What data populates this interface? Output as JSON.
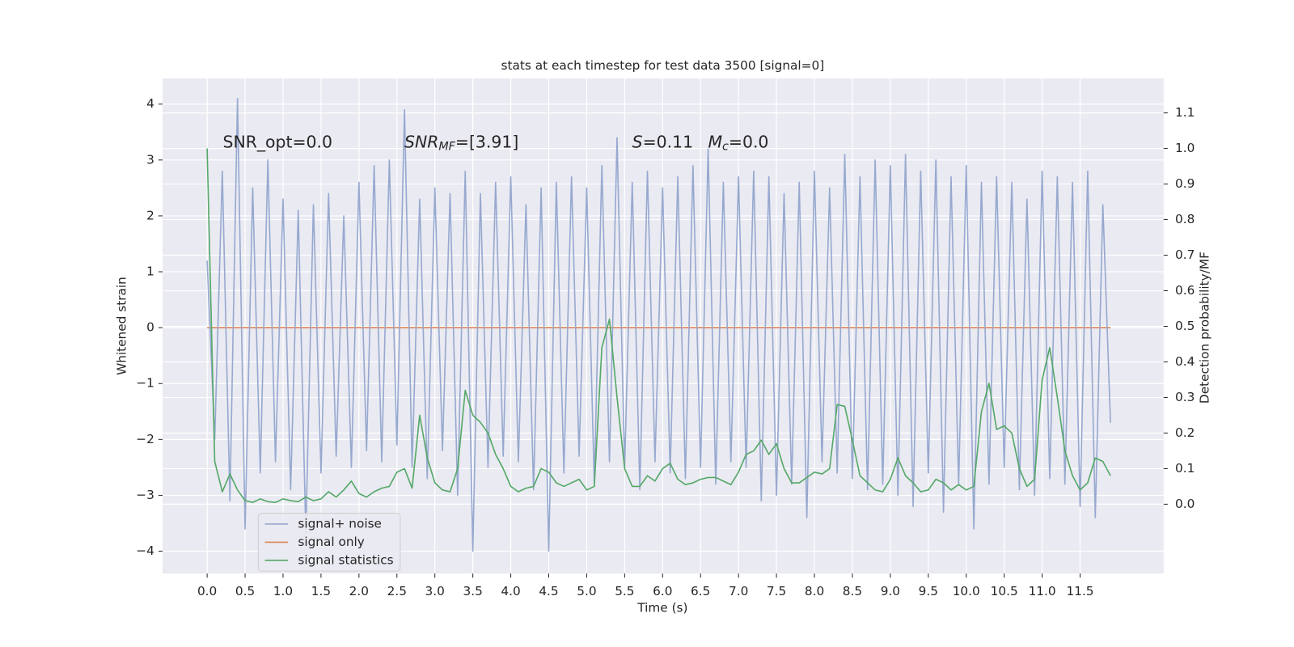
{
  "chart_data": {
    "type": "line",
    "title": "stats at each timestep for test data 3500 [signal=0]",
    "x_label": "Time (s)",
    "y_label": "Whitened strain",
    "y2_label": "Detection probability/MF",
    "annotations": [
      {
        "text": "SNR_opt=0.0"
      },
      {
        "symbol": "SNR",
        "sub": "MF",
        "text": "=[3.91]"
      },
      {
        "symbol": "S",
        "text": "=0.11",
        "symbol2": "M",
        "sub2": "c",
        "text2": "=0.0"
      }
    ],
    "grid": true,
    "legend": "lower left",
    "xlim": [
      -0.587,
      12.6
    ],
    "ylim": [
      -4.4,
      4.46
    ],
    "y2lim": [
      -0.195,
      1.197
    ],
    "xticks": [
      {
        "value": 0,
        "label": "0.0"
      },
      {
        "value": 0.5,
        "label": "0.5"
      },
      {
        "value": 1,
        "label": "1.0"
      },
      {
        "value": 1.5,
        "label": "1.5"
      },
      {
        "value": 2,
        "label": "2.0"
      },
      {
        "value": 2.5,
        "label": "2.5"
      },
      {
        "value": 3,
        "label": "3.0"
      },
      {
        "value": 3.5,
        "label": "3.5"
      },
      {
        "value": 4,
        "label": "4.0"
      },
      {
        "value": 4.5,
        "label": "4.5"
      },
      {
        "value": 5,
        "label": "5.0"
      },
      {
        "value": 5.5,
        "label": "5.5"
      },
      {
        "value": 6,
        "label": "6.0"
      },
      {
        "value": 6.5,
        "label": "6.5"
      },
      {
        "value": 7,
        "label": "7.0"
      },
      {
        "value": 7.5,
        "label": "7.5"
      },
      {
        "value": 8,
        "label": "8.0"
      },
      {
        "value": 8.5,
        "label": "8.5"
      },
      {
        "value": 9,
        "label": "9.0"
      },
      {
        "value": 9.5,
        "label": "9.5"
      },
      {
        "value": 10,
        "label": "10.0"
      },
      {
        "value": 10.5,
        "label": "10.5"
      },
      {
        "value": 11,
        "label": "11.0"
      },
      {
        "value": 11.5,
        "label": "11.5"
      }
    ],
    "yticks": [
      {
        "value": -4,
        "label": "−4"
      },
      {
        "value": -3,
        "label": "−3"
      },
      {
        "value": -2,
        "label": "−2"
      },
      {
        "value": -1,
        "label": "−1"
      },
      0,
      1,
      2,
      3,
      4
    ],
    "y2ticks": [
      {
        "value": 0,
        "label": "0.0"
      },
      {
        "value": 0.1,
        "label": "0.1"
      },
      {
        "value": 0.2,
        "label": "0.2"
      },
      {
        "value": 0.3,
        "label": "0.3"
      },
      {
        "value": 0.4,
        "label": "0.4"
      },
      {
        "value": 0.5,
        "label": "0.5"
      },
      {
        "value": 0.6,
        "label": "0.6"
      },
      {
        "value": 0.7,
        "label": "0.7"
      },
      {
        "value": 0.8,
        "label": "0.8"
      },
      {
        "value": 0.9,
        "label": "0.9"
      },
      {
        "value": 1,
        "label": "1.0"
      },
      {
        "value": 1.1,
        "label": "1.1"
      }
    ],
    "x": [
      0,
      0.1,
      0.2,
      0.3,
      0.4,
      0.5,
      0.6,
      0.7,
      0.8,
      0.9,
      1,
      1.1,
      1.2,
      1.3,
      1.4,
      1.5,
      1.6,
      1.7,
      1.8,
      1.9,
      2,
      2.1,
      2.2,
      2.3,
      2.4,
      2.5,
      2.6,
      2.7,
      2.8,
      2.9,
      3,
      3.1,
      3.2,
      3.3,
      3.4,
      3.5,
      3.6,
      3.7,
      3.8,
      3.9,
      4,
      4.1,
      4.2,
      4.3,
      4.4,
      4.5,
      4.6,
      4.7,
      4.8,
      4.9,
      5,
      5.1,
      5.2,
      5.3,
      5.4,
      5.5,
      5.6,
      5.7,
      5.8,
      5.9,
      6,
      6.1,
      6.2,
      6.3,
      6.4,
      6.5,
      6.6,
      6.7,
      6.8,
      6.9,
      7,
      7.1,
      7.2,
      7.3,
      7.4,
      7.5,
      7.6,
      7.7,
      7.8,
      7.9,
      8,
      8.1,
      8.2,
      8.3,
      8.4,
      8.5,
      8.6,
      8.7,
      8.8,
      8.9,
      9,
      9.1,
      9.2,
      9.3,
      9.4,
      9.5,
      9.6,
      9.7,
      9.8,
      9.9,
      10,
      10.1,
      10.2,
      10.3,
      10.4,
      10.5,
      10.6,
      10.7,
      10.8,
      10.9,
      11,
      11.1,
      11.2,
      11.3,
      11.4,
      11.5,
      11.6,
      11.7,
      11.8,
      11.9
    ],
    "series": [
      {
        "name": "signal only",
        "color": "#dd8452",
        "values": [
          0,
          0,
          0,
          0,
          0,
          0,
          0,
          0,
          0,
          0,
          0,
          0,
          0,
          0,
          0,
          0,
          0,
          0,
          0,
          0,
          0,
          0,
          0,
          0,
          0,
          0,
          0,
          0,
          0,
          0,
          0,
          0,
          0,
          0,
          0,
          0,
          0,
          0,
          0,
          0,
          0,
          0,
          0,
          0,
          0,
          0,
          0,
          0,
          0,
          0,
          0,
          0,
          0,
          0,
          0,
          0,
          0,
          0,
          0,
          0,
          0,
          0,
          0,
          0,
          0,
          0,
          0,
          0,
          0,
          0,
          0,
          0,
          0,
          0,
          0,
          0,
          0,
          0,
          0,
          0,
          0,
          0,
          0,
          0,
          0,
          0,
          0,
          0,
          0,
          0,
          0,
          0,
          0,
          0,
          0,
          0,
          0,
          0,
          0,
          0,
          0,
          0,
          0,
          0,
          0,
          0,
          0,
          0,
          0,
          0,
          0,
          0,
          0,
          0,
          0,
          0,
          0,
          0,
          0,
          0
        ]
      },
      {
        "name": "signal+ noise",
        "color": "#97a9cf",
        "values": [
          1.2,
          -2.0,
          2.8,
          -3.1,
          4.1,
          -3.6,
          2.5,
          -2.6,
          3.0,
          -2.4,
          2.3,
          -2.9,
          2.1,
          -3.7,
          2.2,
          -2.6,
          2.4,
          -2.3,
          2.0,
          -2.5,
          2.6,
          -2.2,
          2.9,
          -2.4,
          3.0,
          -2.1,
          3.9,
          -2.5,
          2.3,
          -2.7,
          2.5,
          -2.2,
          2.4,
          -3.0,
          2.8,
          -4.0,
          2.4,
          -2.5,
          2.6,
          -2.3,
          2.7,
          -2.4,
          2.2,
          -2.9,
          2.5,
          -4.0,
          2.6,
          -2.6,
          2.7,
          -2.3,
          2.5,
          -2.8,
          2.9,
          -2.4,
          3.4,
          -2.5,
          2.6,
          -2.9,
          2.8,
          -2.4,
          2.5,
          -2.6,
          2.7,
          -2.7,
          2.9,
          -2.5,
          3.2,
          -2.8,
          2.6,
          -2.4,
          2.7,
          -2.5,
          2.8,
          -3.1,
          2.7,
          -3.0,
          2.4,
          -2.8,
          2.6,
          -3.4,
          2.8,
          -2.4,
          2.5,
          -2.6,
          3.1,
          -2.7,
          2.7,
          -2.9,
          3.0,
          -2.8,
          2.9,
          -3.0,
          3.1,
          -3.2,
          2.8,
          -2.6,
          3.0,
          -3.3,
          2.7,
          -2.8,
          2.9,
          -3.6,
          2.6,
          -2.8,
          2.7,
          -2.5,
          2.6,
          -2.9,
          2.3,
          -3.0,
          2.8,
          -2.7,
          2.7,
          -2.8,
          2.6,
          -3.2,
          2.8,
          -3.4,
          2.2,
          -1.7
        ]
      },
      {
        "name": "signal statistics",
        "color": "#55a868",
        "axis": "y2",
        "values": [
          1.0,
          0.12,
          0.035,
          0.085,
          0.04,
          0.01,
          0.005,
          0.015,
          0.007,
          0.005,
          0.015,
          0.01,
          0.007,
          0.02,
          0.01,
          0.015,
          0.035,
          0.02,
          0.04,
          0.065,
          0.03,
          0.02,
          0.035,
          0.045,
          0.05,
          0.09,
          0.1,
          0.045,
          0.25,
          0.13,
          0.06,
          0.04,
          0.035,
          0.1,
          0.32,
          0.25,
          0.23,
          0.2,
          0.14,
          0.1,
          0.05,
          0.035,
          0.045,
          0.05,
          0.1,
          0.09,
          0.06,
          0.05,
          0.06,
          0.07,
          0.04,
          0.05,
          0.44,
          0.52,
          0.3,
          0.1,
          0.05,
          0.05,
          0.08,
          0.065,
          0.1,
          0.115,
          0.07,
          0.055,
          0.06,
          0.07,
          0.075,
          0.075,
          0.065,
          0.055,
          0.09,
          0.14,
          0.15,
          0.18,
          0.14,
          0.17,
          0.1,
          0.06,
          0.06,
          0.075,
          0.09,
          0.085,
          0.1,
          0.28,
          0.275,
          0.18,
          0.08,
          0.06,
          0.04,
          0.035,
          0.07,
          0.13,
          0.08,
          0.06,
          0.035,
          0.04,
          0.07,
          0.06,
          0.04,
          0.055,
          0.04,
          0.05,
          0.26,
          0.34,
          0.21,
          0.22,
          0.2,
          0.1,
          0.05,
          0.07,
          0.35,
          0.44,
          0.3,
          0.15,
          0.08,
          0.04,
          0.06,
          0.13,
          0.12,
          0.08
        ]
      }
    ]
  }
}
